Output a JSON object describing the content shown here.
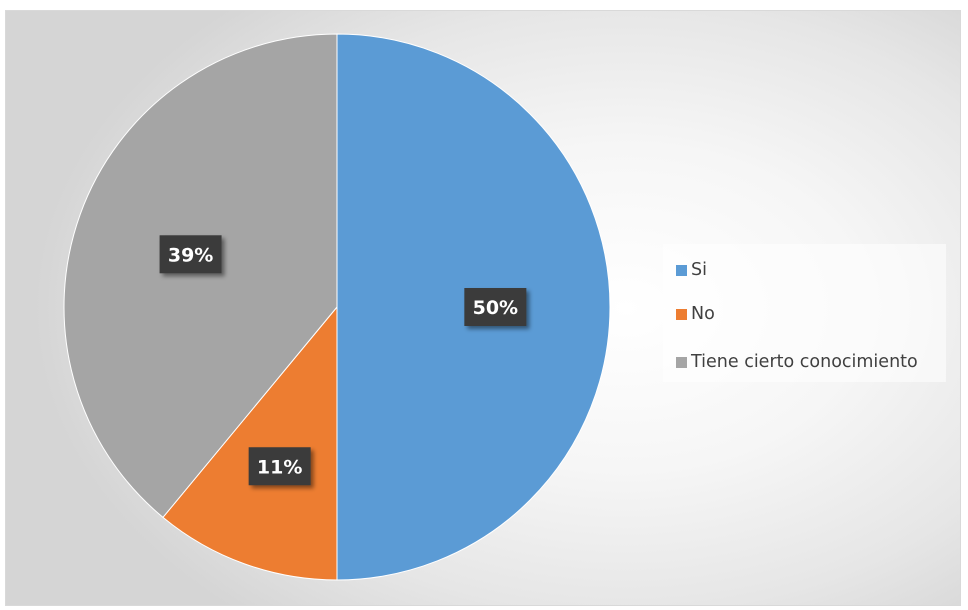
{
  "chart_data": {
    "type": "pie",
    "title": "",
    "categories": [
      "Si",
      "No",
      "Tiene cierto conocimiento"
    ],
    "values": [
      50,
      11,
      39
    ],
    "data_labels": [
      "50%",
      "11%",
      "39%"
    ],
    "colors": [
      "#5b9bd5",
      "#ed7d31",
      "#a5a5a5"
    ],
    "start_angle": "12 o'clock",
    "direction": "clockwise",
    "legend_position": "right"
  }
}
